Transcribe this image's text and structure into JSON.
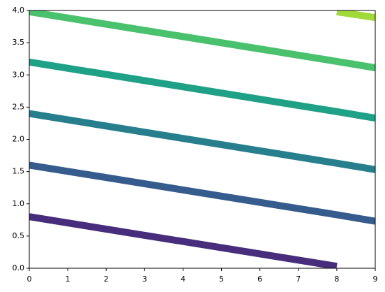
{
  "chart_data": {
    "type": "line",
    "x": [
      0,
      8,
      9
    ],
    "series": [
      {
        "color": "#472d7b",
        "values": [
          0.8,
          0.03,
          null
        ]
      },
      {
        "color": "#365c8d",
        "values": [
          1.6,
          0.83,
          0.73
        ]
      },
      {
        "color": "#277f8e",
        "values": [
          2.4,
          1.63,
          1.53
        ]
      },
      {
        "color": "#1fa187",
        "values": [
          3.2,
          2.43,
          2.33
        ]
      },
      {
        "color": "#4ac16d",
        "values": [
          3.98,
          3.21,
          3.11
        ]
      },
      {
        "color": "#a0da39",
        "values": [
          null,
          3.98,
          3.89
        ]
      }
    ],
    "xlim": [
      0,
      9
    ],
    "xticks": [
      0,
      1,
      2,
      3,
      4,
      5,
      6,
      7,
      8,
      9
    ],
    "ylim": [
      0,
      4
    ],
    "yticks": [
      {
        "value": 0,
        "label": "0.0"
      },
      0.5,
      {
        "value": 1,
        "label": "1.0"
      },
      1.5,
      {
        "value": 2,
        "label": "2.0"
      },
      2.5,
      {
        "value": 3,
        "label": "3.0"
      },
      3.5,
      {
        "value": 4,
        "label": "4.0"
      }
    ]
  }
}
